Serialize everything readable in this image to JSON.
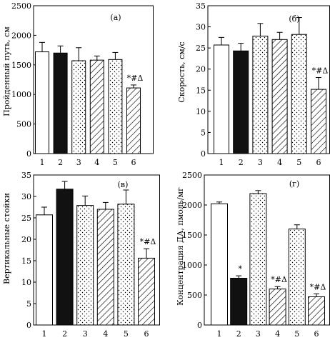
{
  "chart_data": [
    {
      "type": "bar",
      "panel_label": "(а)",
      "title": "",
      "xlabel": "",
      "ylabel": "Пройденный путь, см",
      "ylim": [
        0,
        2500
      ],
      "yticks": [
        0,
        500,
        1000,
        1500,
        2000,
        2500
      ],
      "categories": [
        "1",
        "2",
        "3",
        "4",
        "5",
        "6"
      ],
      "values": [
        1720,
        1700,
        1570,
        1580,
        1590,
        1110
      ],
      "errors": [
        160,
        120,
        220,
        70,
        120,
        50
      ],
      "fills": [
        "white",
        "black",
        "dots",
        "hatch",
        "dots",
        "hatch"
      ],
      "annotations": [
        {
          "category": "6",
          "text": "*#Δ"
        }
      ],
      "grid": false
    },
    {
      "type": "bar",
      "panel_label": "(б)",
      "title": "",
      "xlabel": "",
      "ylabel": "Скорость, см/с",
      "ylim": [
        0,
        35
      ],
      "yticks": [
        0,
        5,
        10,
        15,
        20,
        25,
        30,
        35
      ],
      "categories": [
        "1",
        "2",
        "3",
        "4",
        "5",
        "6"
      ],
      "values": [
        25.7,
        24.3,
        27.8,
        27.0,
        28.2,
        15.2
      ],
      "errors": [
        1.8,
        1.8,
        3.0,
        1.7,
        4.0,
        2.8
      ],
      "fills": [
        "white",
        "black",
        "dots",
        "hatch",
        "dots",
        "hatch"
      ],
      "annotations": [
        {
          "category": "6",
          "text": "*#Δ"
        }
      ],
      "grid": false
    },
    {
      "type": "bar",
      "panel_label": "(в)",
      "title": "",
      "xlabel": "",
      "ylabel": "Вертикальные стойки",
      "ylim": [
        0,
        35
      ],
      "yticks": [
        0,
        5,
        10,
        15,
        20,
        25,
        30,
        35
      ],
      "categories": [
        "1",
        "2",
        "3",
        "4",
        "5",
        "6"
      ],
      "values": [
        25.7,
        31.7,
        27.9,
        27.0,
        28.2,
        15.6
      ],
      "errors": [
        1.8,
        1.8,
        2.2,
        1.6,
        3.3,
        2.2
      ],
      "fills": [
        "white",
        "black",
        "dots",
        "hatch",
        "dots",
        "hatch"
      ],
      "annotations": [
        {
          "category": "6",
          "text": "*#Δ"
        }
      ],
      "grid": false
    },
    {
      "type": "bar",
      "panel_label": "(г)",
      "title": "",
      "xlabel": "",
      "ylabel": "Концентрация ДА, пмоль/мг",
      "ylim": [
        0,
        2500
      ],
      "yticks": [
        0,
        500,
        1000,
        1500,
        2000,
        2500
      ],
      "categories": [
        "1",
        "2",
        "3",
        "4",
        "5",
        "6"
      ],
      "values": [
        2020,
        780,
        2190,
        600,
        1600,
        470
      ],
      "errors": [
        30,
        40,
        50,
        40,
        70,
        50
      ],
      "fills": [
        "white",
        "black",
        "dots",
        "hatch",
        "dots",
        "hatch"
      ],
      "annotations": [
        {
          "category": "2",
          "text": "*"
        },
        {
          "category": "4",
          "text": "*#Δ"
        },
        {
          "category": "6",
          "text": "*#Δ"
        }
      ],
      "grid": false
    }
  ]
}
